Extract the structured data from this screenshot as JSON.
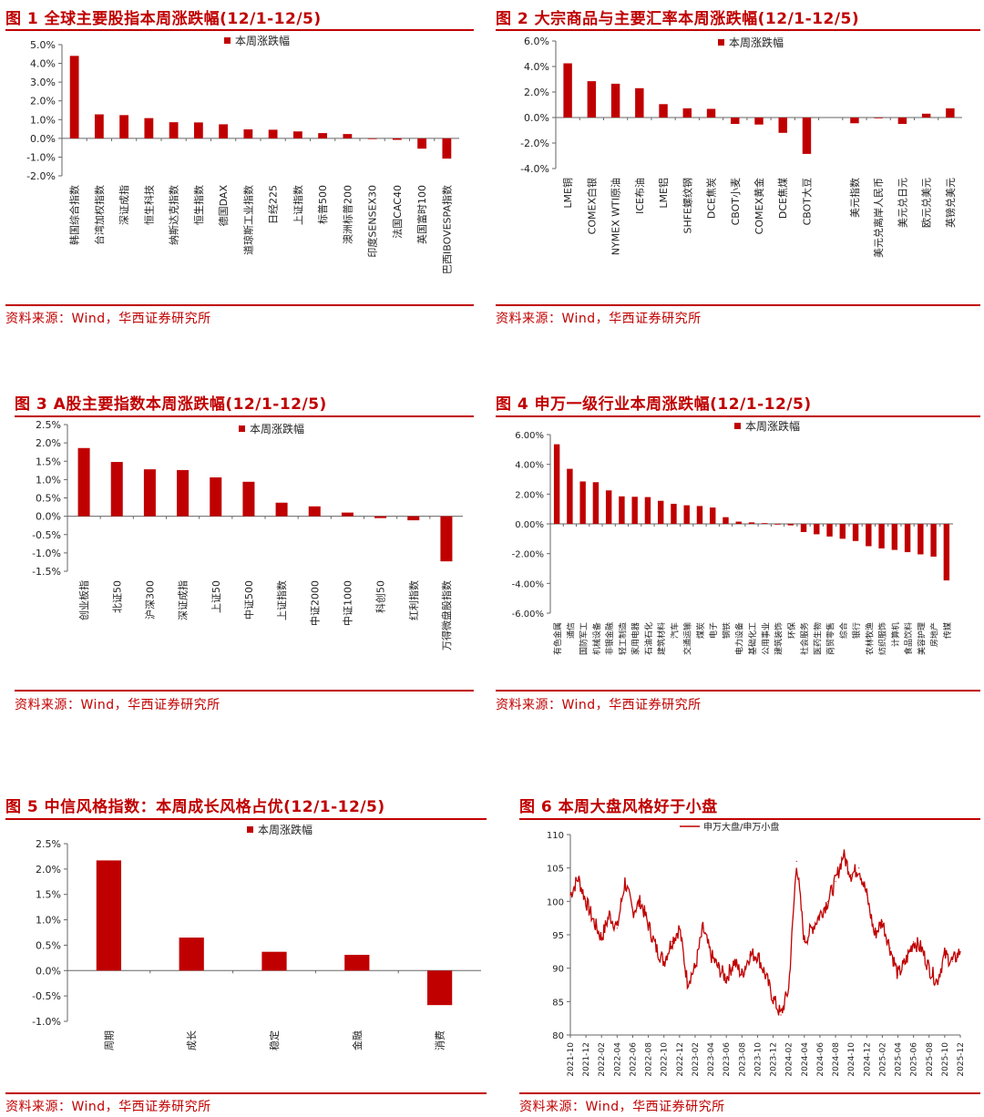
{
  "colors": {
    "accent": "#c00000",
    "bar": "#c00000",
    "axis": "#555555",
    "text": "#222222"
  },
  "source_text": "资料来源：Wind，华西证券研究所",
  "chart_data": [
    {
      "type": "bar",
      "title": "图 1  全球主要股指本周涨跌幅(12/1-12/5)",
      "legend": "本周涨跌幅",
      "categories": [
        "韩国综合指数",
        "台湾加权指数",
        "深证成指",
        "恒生科技",
        "纳斯达克指数",
        "恒生指数",
        "德国DAX",
        "道琼斯工业指数",
        "日经225",
        "上证指数",
        "标普500",
        "澳洲标普200",
        "印度SENSEX30",
        "法国CAC40",
        "英国富时100",
        "巴西IBOVESPA指数"
      ],
      "values": [
        4.4,
        1.28,
        1.24,
        1.08,
        0.86,
        0.85,
        0.75,
        0.48,
        0.46,
        0.37,
        0.28,
        0.23,
        0.0,
        -0.08,
        -0.55,
        -1.08
      ],
      "ylim": [
        -2.0,
        5.0
      ],
      "yticks": [
        5.0,
        4.0,
        3.0,
        2.0,
        1.0,
        0.0,
        -1.0,
        -2.0
      ],
      "ytick_labels": [
        "5.0%",
        "4.0%",
        "3.0%",
        "2.0%",
        "1.0%",
        "0.0%",
        "-1.0%",
        "-2.0%"
      ]
    },
    {
      "type": "bar",
      "title": "图 2  大宗商品与主要汇率本周涨跌幅(12/1-12/5)",
      "legend": "本周涨跌幅",
      "categories": [
        "LME铜",
        "COMEX白银",
        "NYMEX WTI原油",
        "ICE布油",
        "LME铝",
        "SHFE螺纹钢",
        "DCE焦炭",
        "CBOT小麦",
        "COMEX黄金",
        "DCE焦煤",
        "CBOT大豆",
        "",
        "美元指数",
        "美元兑离岸人民币",
        "美元兑日元",
        "欧元兑美元",
        "英镑兑美元"
      ],
      "values": [
        4.25,
        2.85,
        2.65,
        2.3,
        1.05,
        0.72,
        0.68,
        -0.5,
        -0.55,
        -1.2,
        -2.85,
        0,
        -0.45,
        -0.05,
        -0.5,
        0.3,
        0.72
      ],
      "ylim": [
        -4.0,
        6.0
      ],
      "yticks": [
        6.0,
        4.0,
        2.0,
        0.0,
        -2.0,
        -4.0
      ],
      "ytick_labels": [
        "6.0%",
        "4.0%",
        "2.0%",
        "0.0%",
        "-2.0%",
        "-4.0%"
      ]
    },
    {
      "type": "bar",
      "title": "图 3  A股主要指数本周涨跌幅(12/1-12/5)",
      "legend": "本周涨跌幅",
      "categories": [
        "创业板指",
        "北证50",
        "沪深300",
        "深证成指",
        "上证50",
        "中证500",
        "上证指数",
        "中证2000",
        "中证1000",
        "科创50",
        "红利指数",
        "万得微盘股指数"
      ],
      "values": [
        1.86,
        1.48,
        1.28,
        1.26,
        1.06,
        0.94,
        0.37,
        0.27,
        0.1,
        -0.05,
        -0.11,
        -1.23
      ],
      "ylim": [
        -1.5,
        2.5
      ],
      "yticks": [
        2.5,
        2.0,
        1.5,
        1.0,
        0.5,
        0.0,
        -0.5,
        -1.0,
        -1.5
      ],
      "ytick_labels": [
        "2.5%",
        "2.0%",
        "1.5%",
        "1.0%",
        "0.5%",
        "0.0%",
        "-0.5%",
        "-1.0%",
        "-1.5%"
      ]
    },
    {
      "type": "bar",
      "title": "图 4  申万一级行业本周涨跌幅(12/1-12/5)",
      "legend": "本周涨跌幅",
      "categories": [
        "有色金属",
        "通信",
        "国防军工",
        "机械设备",
        "非银金融",
        "轻工制造",
        "家用电器",
        "石油石化",
        "建筑材料",
        "汽车",
        "交通运输",
        "煤炭",
        "电子",
        "钢铁",
        "电力设备",
        "基础化工",
        "公用事业",
        "建筑装饰",
        "环保",
        "社会服务",
        "医药生物",
        "商贸零售",
        "综合",
        "银行",
        "农林牧渔",
        "纺织服饰",
        "计算机",
        "食品饮料",
        "美容护理",
        "房地产",
        "传媒"
      ],
      "values": [
        5.35,
        3.7,
        2.85,
        2.8,
        2.25,
        1.85,
        1.82,
        1.8,
        1.55,
        1.35,
        1.25,
        1.2,
        1.1,
        0.45,
        0.15,
        0.1,
        0.05,
        0.0,
        -0.1,
        -0.55,
        -0.7,
        -0.85,
        -1.0,
        -1.15,
        -1.5,
        -1.65,
        -1.75,
        -1.9,
        -2.05,
        -2.2,
        -3.8
      ],
      "ylim": [
        -6.0,
        6.0
      ],
      "yticks": [
        6.0,
        4.0,
        2.0,
        0.0,
        -2.0,
        -4.0,
        -6.0
      ],
      "ytick_labels": [
        "6.00%",
        "4.00%",
        "2.00%",
        "0.00%",
        "-2.00%",
        "-4.00%",
        "-6.00%"
      ]
    },
    {
      "type": "bar",
      "title": "图 5  中信风格指数：本周成长风格占优(12/1-12/5)",
      "legend": "本周涨跌幅",
      "categories": [
        "周期",
        "成长",
        "稳定",
        "金融",
        "消费"
      ],
      "values": [
        2.17,
        0.65,
        0.37,
        0.31,
        -0.68
      ],
      "ylim": [
        -1.0,
        2.5
      ],
      "yticks": [
        2.5,
        2.0,
        1.5,
        1.0,
        0.5,
        0.0,
        -0.5,
        -1.0
      ],
      "ytick_labels": [
        "2.5%",
        "2.0%",
        "1.5%",
        "1.0%",
        "0.5%",
        "0.0%",
        "-0.5%",
        "-1.0%"
      ]
    },
    {
      "type": "line",
      "title": "图 6  本周大盘风格好于小盘",
      "legend": "申万大盘/申万小盘",
      "ylim": [
        80,
        110
      ],
      "yticks": [
        110,
        105,
        100,
        95,
        90,
        85,
        80
      ],
      "ytick_labels": [
        "110",
        "105",
        "100",
        "95",
        "90",
        "85",
        "80"
      ],
      "x_labels": [
        "2021-10",
        "2021-12",
        "2022-02",
        "2022-04",
        "2022-06",
        "2022-08",
        "2022-10",
        "2022-12",
        "2023-02",
        "2023-04",
        "2023-06",
        "2023-08",
        "2023-10",
        "2023-12",
        "2024-02",
        "2024-04",
        "2024-06",
        "2024-08",
        "2024-10",
        "2024-12",
        "2025-02",
        "2025-04",
        "2025-06",
        "2025-08",
        "2025-10",
        "2025-12"
      ],
      "x": [
        0,
        0.5,
        1,
        1.5,
        2,
        2.5,
        3,
        3.5,
        4,
        4.5,
        5,
        5.5,
        6,
        6.5,
        7,
        7.5,
        8,
        8.5,
        9,
        9.5,
        10,
        10.5,
        11,
        11.5,
        12,
        12.5,
        13,
        13.5,
        14,
        14.5,
        15,
        15.5,
        16,
        16.5,
        17,
        17.5,
        18,
        18.5,
        19,
        19.5,
        20,
        20.5,
        21,
        21.5,
        22,
        22.5,
        23,
        23.5,
        24,
        24.5,
        25
      ],
      "values": [
        101,
        103.5,
        100,
        97,
        94.5,
        98,
        96,
        103,
        98.5,
        100,
        96.5,
        93,
        91,
        94,
        96,
        88,
        90,
        96,
        92,
        90,
        88.5,
        91,
        89,
        92,
        92,
        89,
        85.5,
        83,
        87,
        106,
        94,
        96,
        98,
        100,
        103,
        107,
        104,
        105,
        101,
        95,
        97,
        93,
        89,
        91,
        94,
        93,
        90,
        88,
        92,
        91,
        92.5
      ]
    }
  ]
}
